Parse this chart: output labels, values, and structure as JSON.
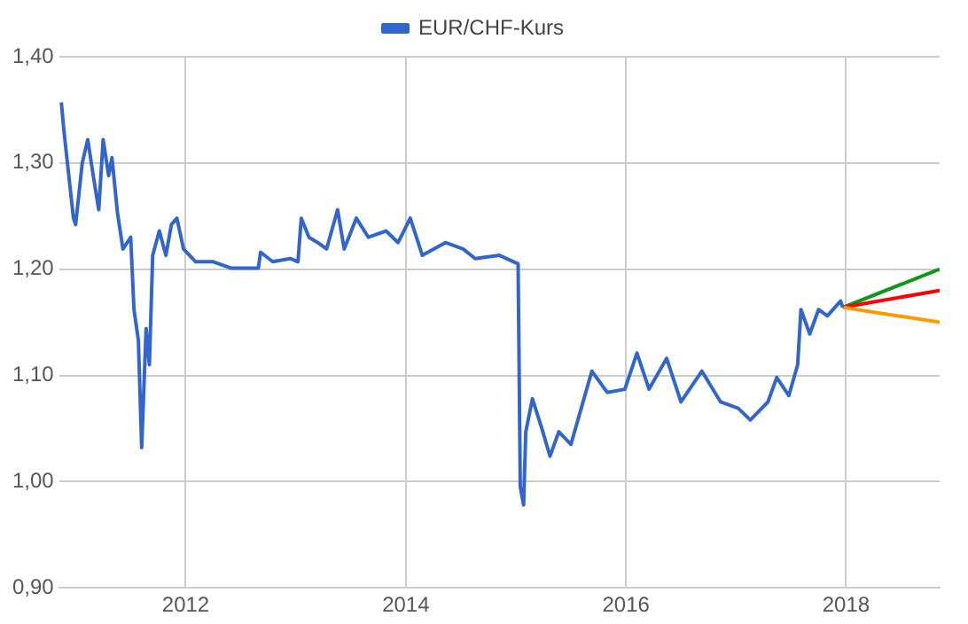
{
  "chart_data": {
    "type": "line",
    "xlim": [
      2010.85,
      2018.85
    ],
    "xticks": [
      2012,
      2014,
      2016,
      2018
    ],
    "ylim": [
      0.9,
      1.4
    ],
    "yticks": [
      {
        "value": 0.9,
        "label": "0,90"
      },
      {
        "value": 1.0,
        "label": "1,00"
      },
      {
        "value": 1.1,
        "label": "1,10"
      },
      {
        "value": 1.2,
        "label": "1,20"
      },
      {
        "value": 1.3,
        "label": "1,30"
      },
      {
        "value": 1.4,
        "label": "1,40"
      }
    ],
    "grid": true,
    "legend": "top",
    "marker": "none",
    "line_style": "solid",
    "series": [
      {
        "name": "EUR/CHF-Kurs",
        "color": "#3366cc",
        "x": [
          2010.87,
          2010.89,
          2010.92,
          2010.98,
          2011.0,
          2011.06,
          2011.11,
          2011.16,
          2011.21,
          2011.25,
          2011.3,
          2011.33,
          2011.38,
          2011.43,
          2011.5,
          2011.53,
          2011.57,
          2011.6,
          2011.64,
          2011.67,
          2011.7,
          2011.76,
          2011.82,
          2011.87,
          2011.92,
          2011.98,
          2012.09,
          2012.25,
          2012.41,
          2012.66,
          2012.68,
          2012.79,
          2012.95,
          2013.02,
          2013.05,
          2013.12,
          2013.2,
          2013.28,
          2013.38,
          2013.44,
          2013.55,
          2013.66,
          2013.82,
          2013.93,
          2014.04,
          2014.15,
          2014.36,
          2014.52,
          2014.63,
          2014.85,
          2015.02,
          2015.04,
          2015.07,
          2015.09,
          2015.15,
          2015.23,
          2015.31,
          2015.39,
          2015.5,
          2015.58,
          2015.69,
          2015.83,
          2015.99,
          2016.1,
          2016.21,
          2016.37,
          2016.5,
          2016.69,
          2016.86,
          2017.02,
          2017.13,
          2017.29,
          2017.37,
          2017.48,
          2017.56,
          2017.59,
          2017.67,
          2017.75,
          2017.83,
          2017.95,
          2017.97
        ],
        "values": [
          1.357,
          1.334,
          1.305,
          1.248,
          1.242,
          1.3,
          1.322,
          1.288,
          1.256,
          1.322,
          1.288,
          1.305,
          1.253,
          1.219,
          1.23,
          1.162,
          1.133,
          1.032,
          1.144,
          1.11,
          1.213,
          1.236,
          1.213,
          1.242,
          1.248,
          1.219,
          1.207,
          1.207,
          1.201,
          1.201,
          1.216,
          1.207,
          1.21,
          1.207,
          1.248,
          1.23,
          1.225,
          1.219,
          1.256,
          1.219,
          1.248,
          1.23,
          1.236,
          1.225,
          1.248,
          1.213,
          1.225,
          1.219,
          1.21,
          1.213,
          1.205,
          0.995,
          0.978,
          1.047,
          1.078,
          1.052,
          1.024,
          1.047,
          1.035,
          1.064,
          1.104,
          1.084,
          1.087,
          1.121,
          1.087,
          1.116,
          1.075,
          1.104,
          1.075,
          1.069,
          1.058,
          1.075,
          1.098,
          1.081,
          1.11,
          1.162,
          1.139,
          1.162,
          1.156,
          1.17,
          1.164
        ]
      },
      {
        "color": "#ff9900",
        "x": [
          2017.97,
          2018.85
        ],
        "values": [
          1.164,
          1.15
        ]
      },
      {
        "color": "#ff0000",
        "x": [
          2017.97,
          2018.85
        ],
        "values": [
          1.164,
          1.18
        ]
      },
      {
        "color": "#109618",
        "x": [
          2017.97,
          2018.85
        ],
        "values": [
          1.164,
          1.2
        ]
      }
    ]
  }
}
